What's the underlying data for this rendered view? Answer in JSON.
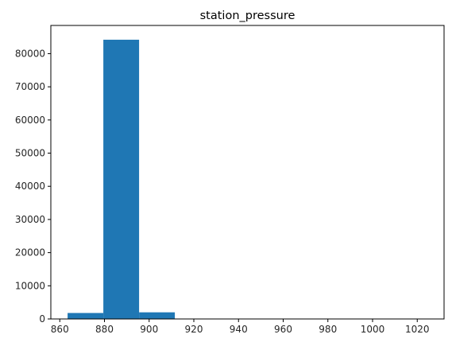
{
  "chart_data": {
    "type": "bar",
    "title": "station_pressure",
    "xlabel": "",
    "ylabel": "",
    "xlim": [
      856,
      1032
    ],
    "ylim": [
      0,
      88500
    ],
    "bins": [
      {
        "x0": 863.5,
        "x1": 879.5,
        "count": 1800
      },
      {
        "x0": 879.5,
        "x1": 895.5,
        "count": 84200
      },
      {
        "x0": 895.5,
        "x1": 911.5,
        "count": 2000
      },
      {
        "x0": 911.5,
        "x1": 927.5,
        "count": 20
      },
      {
        "x0": 927.5,
        "x1": 943.5,
        "count": 5
      },
      {
        "x0": 943.5,
        "x1": 959.5,
        "count": 0
      },
      {
        "x0": 959.5,
        "x1": 975.5,
        "count": 0
      },
      {
        "x0": 975.5,
        "x1": 991.5,
        "count": 0
      },
      {
        "x0": 991.5,
        "x1": 1007.5,
        "count": 0
      },
      {
        "x0": 1007.5,
        "x1": 1023.5,
        "count": 1
      }
    ],
    "xticks": [
      "860",
      "880",
      "900",
      "920",
      "940",
      "960",
      "980",
      "1000",
      "1020"
    ],
    "yticks": [
      "0",
      "10000",
      "20000",
      "30000",
      "40000",
      "50000",
      "60000",
      "70000",
      "80000"
    ],
    "grid": false,
    "bar_color": "#1f77b4"
  }
}
